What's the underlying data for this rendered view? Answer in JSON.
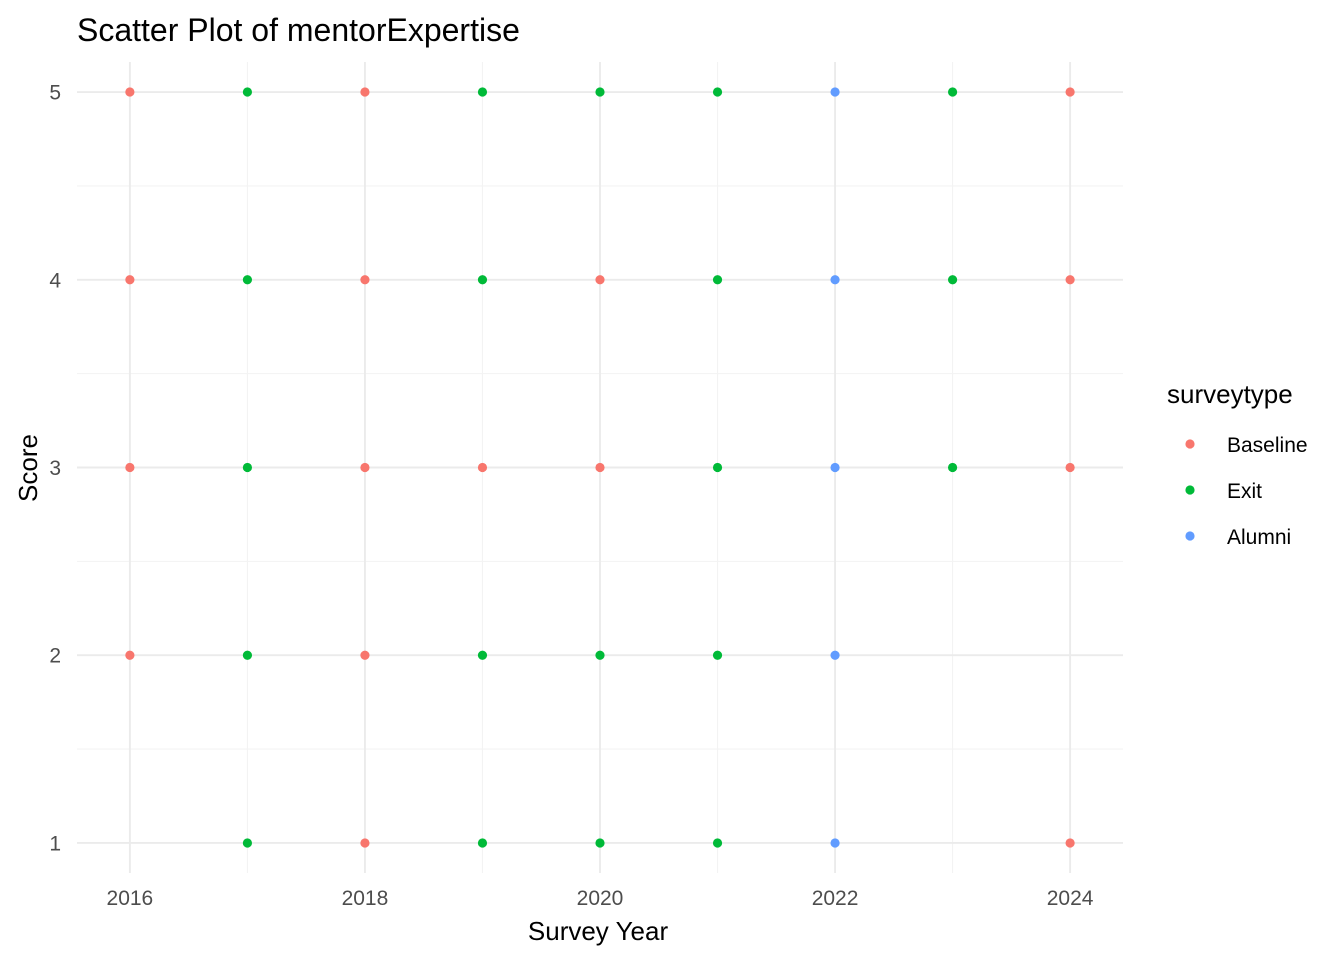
{
  "chart_data": {
    "type": "scatter",
    "title": "Scatter Plot of mentorExpertise",
    "xlabel": "Survey Year",
    "ylabel": "Score",
    "x_ticks": [
      "2016",
      "2018",
      "2020",
      "2022",
      "2024"
    ],
    "y_ticks": [
      "1",
      "2",
      "3",
      "4",
      "5"
    ],
    "xlim": [
      2015.55,
      2024.45
    ],
    "ylim": [
      0.84,
      5.16
    ],
    "grid": true,
    "legend": {
      "title": "surveytype",
      "placement": "right"
    },
    "series": [
      {
        "name": "Baseline",
        "color": "#F8766D",
        "points": [
          [
            2016,
            5
          ],
          [
            2016,
            4
          ],
          [
            2016,
            3
          ],
          [
            2016,
            2
          ],
          [
            2018,
            5
          ],
          [
            2018,
            4
          ],
          [
            2018,
            3
          ],
          [
            2018,
            2
          ],
          [
            2018,
            1
          ],
          [
            2019,
            3
          ],
          [
            2020,
            4
          ],
          [
            2020,
            3
          ],
          [
            2024,
            5
          ],
          [
            2024,
            4
          ],
          [
            2024,
            3
          ],
          [
            2024,
            1
          ]
        ]
      },
      {
        "name": "Exit",
        "color": "#00BA38",
        "points": [
          [
            2017,
            5
          ],
          [
            2017,
            4
          ],
          [
            2017,
            3
          ],
          [
            2017,
            2
          ],
          [
            2017,
            1
          ],
          [
            2019,
            5
          ],
          [
            2019,
            4
          ],
          [
            2019,
            2
          ],
          [
            2019,
            1
          ],
          [
            2020,
            5
          ],
          [
            2020,
            2
          ],
          [
            2020,
            1
          ],
          [
            2021,
            5
          ],
          [
            2021,
            4
          ],
          [
            2021,
            3
          ],
          [
            2021,
            2
          ],
          [
            2021,
            1
          ],
          [
            2023,
            5
          ],
          [
            2023,
            4
          ],
          [
            2023,
            3
          ]
        ]
      },
      {
        "name": "Alumni",
        "color": "#619CFF",
        "points": [
          [
            2022,
            5
          ],
          [
            2022,
            4
          ],
          [
            2022,
            3
          ],
          [
            2022,
            2
          ],
          [
            2022,
            1
          ]
        ]
      }
    ]
  }
}
